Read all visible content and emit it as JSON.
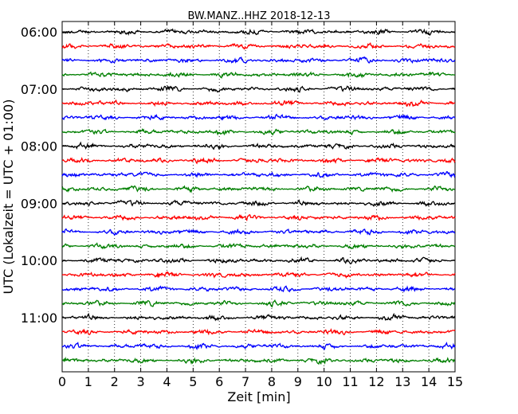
{
  "chart_data": {
    "type": "line",
    "title": "BW.MANZ..HHZ 2018-12-13",
    "xlabel": "Zeit  [min]",
    "ylabel": "UTC (Lokalzeit = UTC + 01:00)",
    "xlim": [
      0,
      15
    ],
    "x_ticks": [
      "0",
      "1",
      "2",
      "3",
      "4",
      "5",
      "6",
      "7",
      "8",
      "9",
      "10",
      "11",
      "12",
      "13",
      "14",
      "15"
    ],
    "y_tick_labels": [
      "06:00",
      "07:00",
      "08:00",
      "09:00",
      "10:00",
      "11:00"
    ],
    "grid": "vertical dotted",
    "trace_colors": [
      "#000000",
      "#ff0000",
      "#0000ff",
      "#007f00"
    ],
    "trace_start_times": [
      "06:00",
      "06:15",
      "06:30",
      "06:45",
      "07:00",
      "07:15",
      "07:30",
      "07:45",
      "08:00",
      "08:15",
      "08:30",
      "08:45",
      "09:00",
      "09:15",
      "09:30",
      "09:45",
      "10:00",
      "10:15",
      "10:30",
      "10:45",
      "11:00",
      "11:15",
      "11:30",
      "11:45"
    ]
  }
}
